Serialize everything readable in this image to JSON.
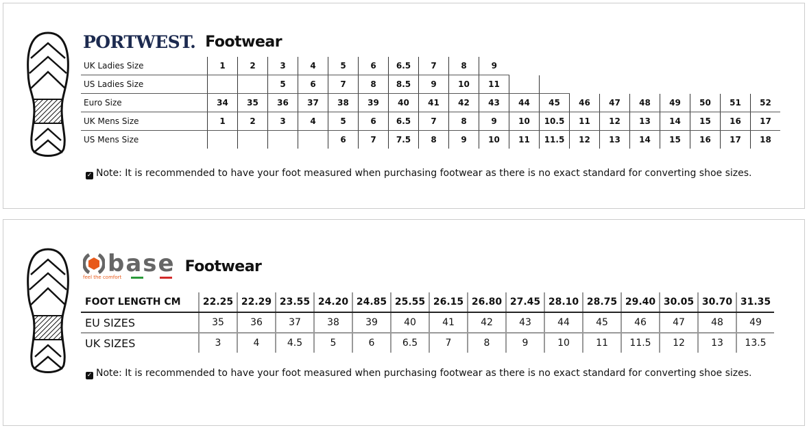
{
  "portwest": {
    "logo": "PORTWEST.",
    "title": "Footwear",
    "rows": [
      {
        "label": "UK Ladies Size",
        "values": [
          "1",
          "2",
          "3",
          "4",
          "5",
          "6",
          "6.5",
          "7",
          "8",
          "9",
          null,
          null,
          null,
          null,
          null,
          null,
          null,
          null,
          null
        ]
      },
      {
        "label": "US Ladies Size",
        "values": [
          "",
          "",
          "5",
          "6",
          "7",
          "8",
          "8.5",
          "9",
          "10",
          "11",
          "",
          "",
          null,
          null,
          null,
          null,
          null,
          null,
          null
        ]
      },
      {
        "label": "Euro Size",
        "values": [
          "34",
          "35",
          "36",
          "37",
          "38",
          "39",
          "40",
          "41",
          "42",
          "43",
          "44",
          "45",
          "46",
          "47",
          "48",
          "49",
          "50",
          "51",
          "52"
        ]
      },
      {
        "label": "UK Mens Size",
        "values": [
          "1",
          "2",
          "3",
          "4",
          "5",
          "6",
          "6.5",
          "7",
          "8",
          "9",
          "10",
          "10.5",
          "11",
          "12",
          "13",
          "14",
          "15",
          "16",
          "17"
        ]
      },
      {
        "label": "US Mens Size",
        "values": [
          "",
          "",
          "",
          "",
          "6",
          "7",
          "7.5",
          "8",
          "9",
          "10",
          "11",
          "11.5",
          "12",
          "13",
          "14",
          "15",
          "16",
          "17",
          "18"
        ]
      }
    ],
    "note": "Note: It is recommended to have your foot measured when purchasing footwear as there is no exact standard for converting shoe sizes."
  },
  "base": {
    "logo": "base",
    "tagline": "feel the comfort",
    "title": "Footwear",
    "rows": [
      {
        "label": "FOOT LENGTH CM",
        "values": [
          "22.25",
          "22.29",
          "23.55",
          "24.20",
          "24.85",
          "25.55",
          "26.15",
          "26.80",
          "27.45",
          "28.10",
          "28.75",
          "29.40",
          "30.05",
          "30.70",
          "31.35"
        ]
      },
      {
        "label": "EU SIZES",
        "values": [
          "35",
          "36",
          "37",
          "38",
          "39",
          "40",
          "41",
          "42",
          "43",
          "44",
          "45",
          "46",
          "47",
          "48",
          "49"
        ]
      },
      {
        "label": "UK SIZES",
        "values": [
          "3",
          "4",
          "4.5",
          "5",
          "6",
          "6.5",
          "7",
          "8",
          "9",
          "10",
          "11",
          "11.5",
          "12",
          "13",
          "13.5"
        ]
      }
    ],
    "note": "Note: It is recommended to have your foot measured when purchasing footwear as there is no exact standard for converting shoe sizes."
  },
  "colors": {
    "portwest_navy": "#1c2a4f",
    "base_orange": "#e85a1b",
    "base_grey": "#666666"
  }
}
